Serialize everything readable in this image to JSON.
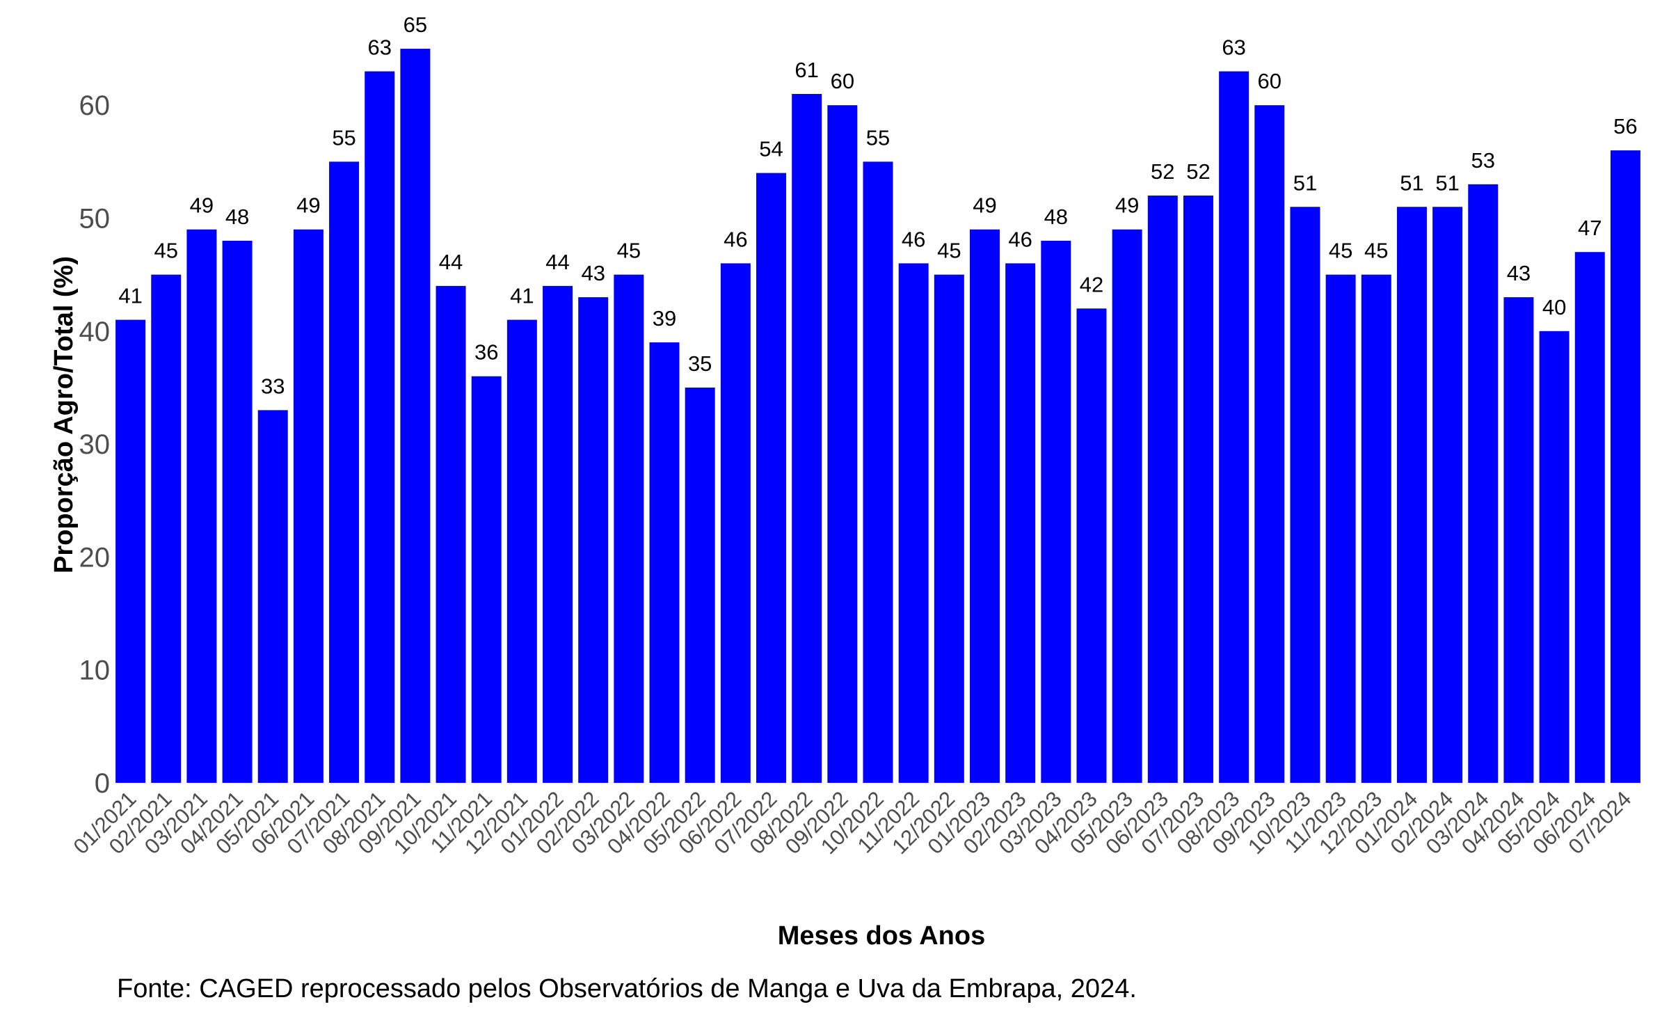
{
  "caption": "Fonte: CAGED reprocessado pelos Observatórios de Manga e Uva da Embrapa, 2024.",
  "chart_data": {
    "type": "bar",
    "title": "",
    "xlabel": "Meses dos Anos",
    "ylabel": "Proporção Agro/Total (%)",
    "ylim": [
      0,
      68
    ],
    "yticks": [
      0,
      10,
      20,
      30,
      40,
      50,
      60
    ],
    "grid": false,
    "bar_color": "#0000ff",
    "data_labels": true,
    "categories": [
      "01/2021",
      "02/2021",
      "03/2021",
      "04/2021",
      "05/2021",
      "06/2021",
      "07/2021",
      "08/2021",
      "09/2021",
      "10/2021",
      "11/2021",
      "12/2021",
      "01/2022",
      "02/2022",
      "03/2022",
      "04/2022",
      "05/2022",
      "06/2022",
      "07/2022",
      "08/2022",
      "09/2022",
      "10/2022",
      "11/2022",
      "12/2022",
      "01/2023",
      "02/2023",
      "03/2023",
      "04/2023",
      "05/2023",
      "06/2023",
      "07/2023",
      "08/2023",
      "09/2023",
      "10/2023",
      "11/2023",
      "12/2023",
      "01/2024",
      "02/2024",
      "03/2024",
      "04/2024",
      "05/2024",
      "06/2024",
      "07/2024"
    ],
    "values": [
      41,
      45,
      49,
      48,
      33,
      49,
      55,
      63,
      65,
      44,
      36,
      41,
      44,
      43,
      45,
      39,
      35,
      46,
      54,
      61,
      60,
      55,
      46,
      45,
      49,
      46,
      48,
      42,
      49,
      52,
      52,
      63,
      60,
      51,
      45,
      45,
      51,
      51,
      53,
      43,
      40,
      47,
      56
    ]
  }
}
